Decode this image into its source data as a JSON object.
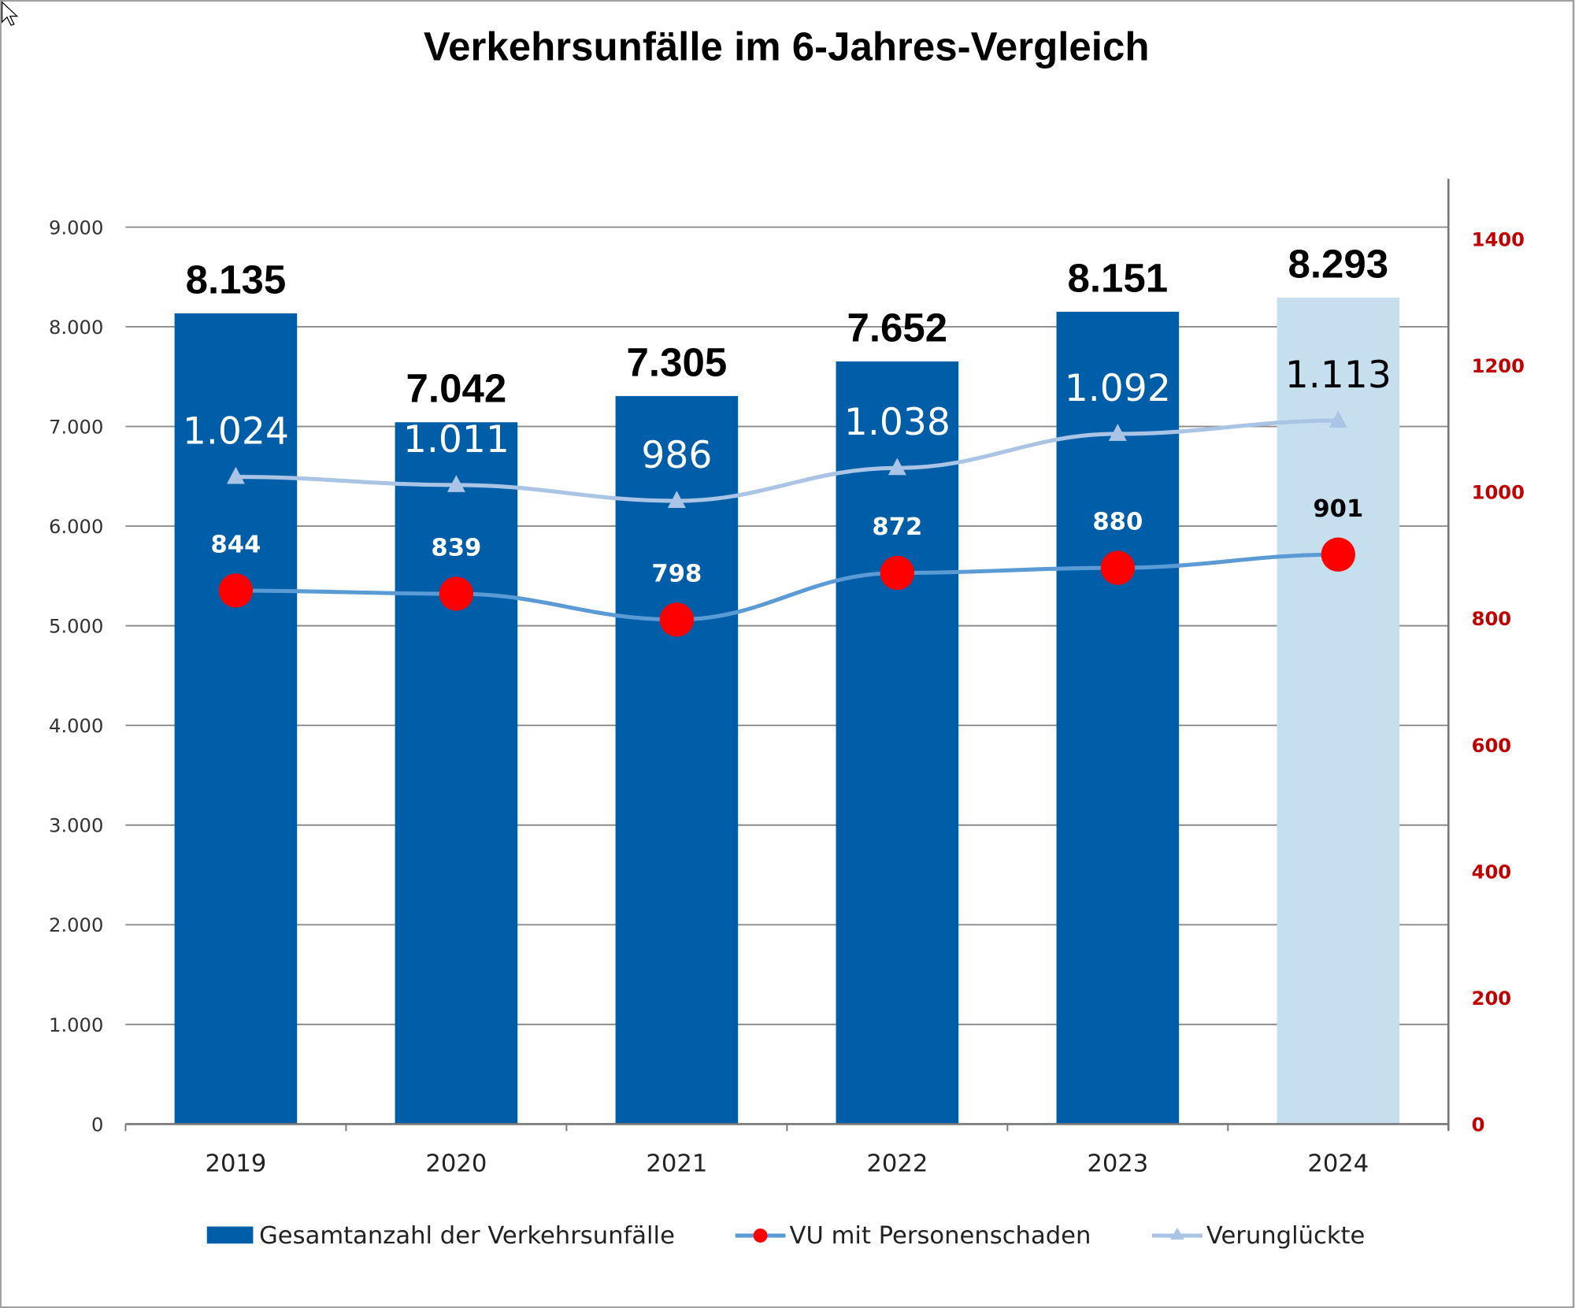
{
  "chart_data": {
    "type": "bar",
    "title": "Verkehrsunfälle im 6-Jahres-Vergleich",
    "categories": [
      "2019",
      "2020",
      "2021",
      "2022",
      "2023",
      "2024"
    ],
    "y_left": {
      "range": [
        0,
        9000
      ],
      "ticks": [
        "0",
        "1.000",
        "2.000",
        "3.000",
        "4.000",
        "5.000",
        "6.000",
        "7.000",
        "8.000",
        "9.000"
      ],
      "tick_values": [
        0,
        1000,
        2000,
        3000,
        4000,
        5000,
        6000,
        7000,
        8000,
        9000
      ]
    },
    "y_right": {
      "range": [
        0,
        1400
      ],
      "ticks": [
        "0",
        "200",
        "400",
        "600",
        "800",
        "1000",
        "1200",
        "1400"
      ],
      "tick_values": [
        0,
        200,
        400,
        600,
        800,
        1000,
        1200,
        1400
      ],
      "color": "#c00000"
    },
    "grid": true,
    "legend_position": "bottom",
    "series": [
      {
        "name": "Gesamtanzahl der Verkehrsunfälle",
        "type": "bar",
        "axis": "left",
        "values": [
          8135,
          7042,
          7305,
          7652,
          8151,
          8293
        ],
        "labels": [
          "8.135",
          "7.042",
          "7.305",
          "7.652",
          "8.151",
          "8.293"
        ],
        "color": "#005ea8",
        "highlight_color": "#c5dfee"
      },
      {
        "name": "VU mit Personenschaden",
        "type": "line",
        "axis": "right",
        "values": [
          844,
          839,
          798,
          872,
          880,
          901
        ],
        "labels": [
          "844",
          "839",
          "798",
          "872",
          "880",
          "901"
        ],
        "color": "#5b9bd5",
        "marker_color": "#ff0000"
      },
      {
        "name": "Verunglückte",
        "type": "line",
        "axis": "right",
        "values": [
          1024,
          1011,
          986,
          1038,
          1092,
          1113
        ],
        "labels": [
          "1.024",
          "1.011",
          "986",
          "1.038",
          "1.092",
          "1.113"
        ],
        "color": "#a9c4e4"
      }
    ]
  }
}
